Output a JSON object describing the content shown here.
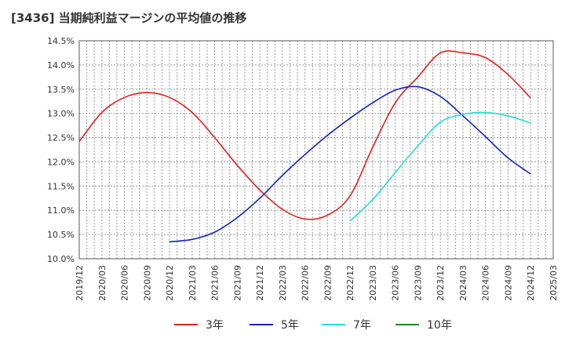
{
  "chart_data": {
    "type": "line",
    "title": "[3436]  当期純利益マージンの平均値の推移",
    "xlabel": "",
    "ylabel": "",
    "x_ticks": [
      "2019/12",
      "2020/03",
      "2020/06",
      "2020/09",
      "2020/12",
      "2021/03",
      "2021/06",
      "2021/09",
      "2021/12",
      "2022/03",
      "2022/06",
      "2022/09",
      "2022/12",
      "2023/03",
      "2023/06",
      "2023/09",
      "2023/12",
      "2024/03",
      "2024/06",
      "2024/09",
      "2024/12",
      "2025/03"
    ],
    "y_ticks": [
      "10.0%",
      "10.5%",
      "11.0%",
      "11.5%",
      "12.0%",
      "12.5%",
      "13.0%",
      "13.5%",
      "14.0%",
      "14.5%"
    ],
    "ylim": [
      10.0,
      14.5
    ],
    "grid": true,
    "legend_position": "bottom",
    "x": [
      "2019/12",
      "2020/03",
      "2020/06",
      "2020/09",
      "2020/12",
      "2021/03",
      "2021/06",
      "2021/09",
      "2021/12",
      "2022/03",
      "2022/06",
      "2022/09",
      "2022/12",
      "2023/03",
      "2023/06",
      "2023/09",
      "2023/12",
      "2024/03",
      "2024/06",
      "2024/09",
      "2024/12"
    ],
    "series": [
      {
        "name": "3年",
        "color": "#dd2222",
        "values": [
          12.42,
          13.02,
          13.33,
          13.43,
          13.33,
          13.02,
          12.5,
          11.93,
          11.42,
          11.02,
          10.82,
          10.9,
          11.3,
          12.3,
          13.22,
          13.75,
          14.25,
          14.25,
          14.15,
          13.8,
          13.32
        ]
      },
      {
        "name": "5年",
        "color": "#1122bb",
        "values": [
          null,
          null,
          null,
          null,
          10.35,
          10.4,
          10.55,
          10.85,
          11.25,
          11.72,
          12.15,
          12.55,
          12.9,
          13.22,
          13.48,
          13.55,
          13.35,
          12.95,
          12.52,
          12.08,
          11.75
        ]
      },
      {
        "name": "7年",
        "color": "#22dddd",
        "values": [
          null,
          null,
          null,
          null,
          null,
          null,
          null,
          null,
          null,
          null,
          null,
          null,
          10.78,
          11.22,
          11.78,
          12.33,
          12.82,
          12.98,
          13.02,
          12.95,
          12.8
        ]
      },
      {
        "name": "10年",
        "color": "#228822",
        "values": [
          null,
          null,
          null,
          null,
          null,
          null,
          null,
          null,
          null,
          null,
          null,
          null,
          null,
          null,
          null,
          null,
          null,
          null,
          null,
          null,
          null
        ]
      }
    ]
  }
}
